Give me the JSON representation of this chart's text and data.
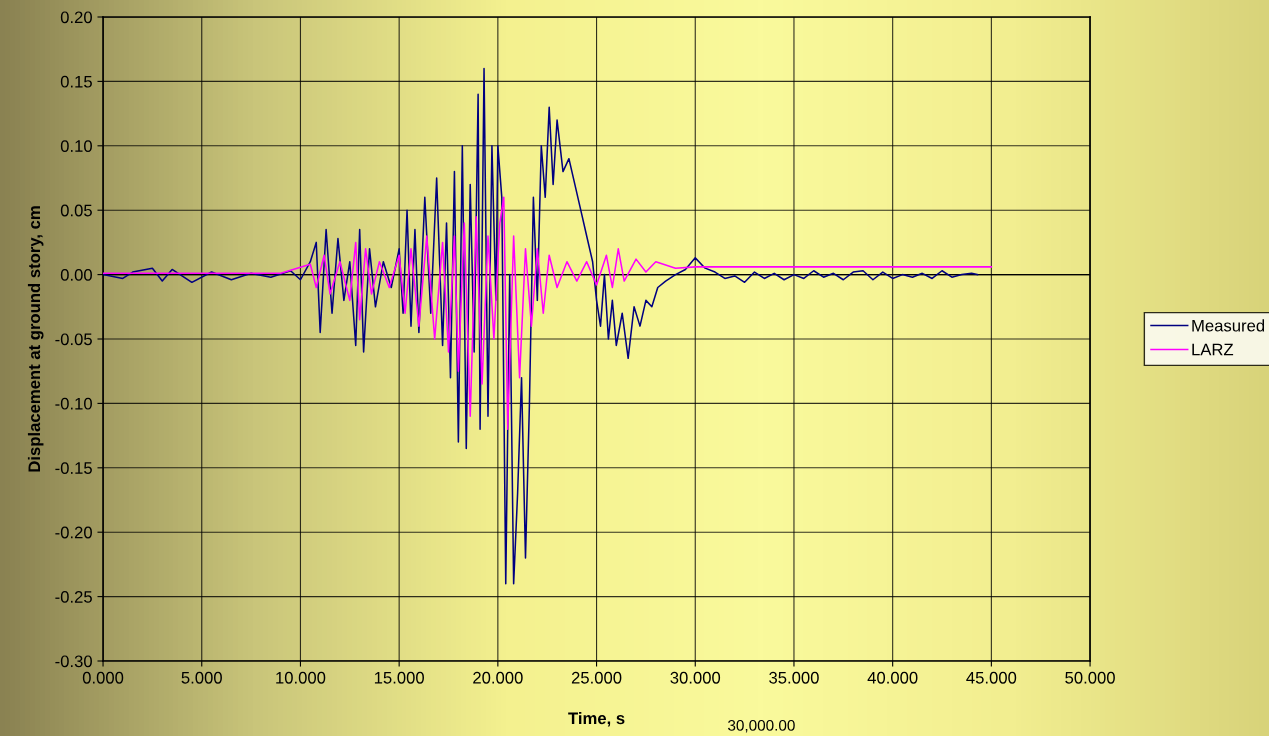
{
  "chart_data": {
    "type": "line",
    "xlabel": "Time, s",
    "ylabel": "Displacement at ground story, cm",
    "xlim": [
      0,
      50
    ],
    "ylim": [
      -0.3,
      0.2
    ],
    "xticks": [
      {
        "value": 0,
        "label": "0.000"
      },
      {
        "value": 5,
        "label": "5.000"
      },
      {
        "value": 10,
        "label": "10.000"
      },
      {
        "value": 15,
        "label": "15.000"
      },
      {
        "value": 20,
        "label": "20.000"
      },
      {
        "value": 25,
        "label": "25.000"
      },
      {
        "value": 30,
        "label": "30.000"
      },
      {
        "value": 35,
        "label": "35.000"
      },
      {
        "value": 40,
        "label": "40.000"
      },
      {
        "value": 45,
        "label": "45.000"
      },
      {
        "value": 50,
        "label": "50.000"
      }
    ],
    "yticks": [
      {
        "value": -0.3,
        "label": "-0.30"
      },
      {
        "value": -0.25,
        "label": "-0.25"
      },
      {
        "value": -0.2,
        "label": "-0.20"
      },
      {
        "value": -0.15,
        "label": "-0.15"
      },
      {
        "value": -0.1,
        "label": "-0.10"
      },
      {
        "value": -0.05,
        "label": "-0.05"
      },
      {
        "value": 0,
        "label": "0.00"
      },
      {
        "value": 0.05,
        "label": "0.05"
      },
      {
        "value": 0.1,
        "label": "0.10"
      },
      {
        "value": 0.15,
        "label": "0.15"
      },
      {
        "value": 0.2,
        "label": "0.20"
      }
    ],
    "grid": true,
    "legend": "right",
    "marker": "none",
    "line_style": "solid",
    "ref_lines": [
      {
        "axis": "y",
        "value": 0,
        "color": "#000000"
      }
    ],
    "annotations": [
      "30,000.00"
    ],
    "series": [
      {
        "name": "Measured",
        "color": "#000080",
        "x": [
          0,
          1,
          1.5,
          2.5,
          3,
          3.5,
          4.5,
          5.5,
          6.5,
          7.5,
          8.5,
          9.5,
          10,
          10.5,
          10.8,
          11.0,
          11.3,
          11.6,
          11.9,
          12.2,
          12.5,
          12.8,
          13.0,
          13.2,
          13.5,
          13.8,
          14.2,
          14.6,
          15.0,
          15.2,
          15.4,
          15.6,
          15.8,
          16.0,
          16.3,
          16.6,
          16.9,
          17.2,
          17.4,
          17.6,
          17.8,
          18.0,
          18.2,
          18.4,
          18.6,
          18.8,
          19.0,
          19.1,
          19.3,
          19.5,
          19.7,
          19.9,
          20.0,
          20.2,
          20.4,
          20.6,
          20.8,
          21.0,
          21.2,
          21.4,
          21.6,
          21.8,
          22.0,
          22.2,
          22.4,
          22.6,
          22.8,
          23.0,
          23.3,
          23.6,
          23.9,
          24.2,
          24.5,
          24.8,
          25.0,
          25.2,
          25.4,
          25.6,
          25.8,
          26.0,
          26.3,
          26.6,
          26.9,
          27.2,
          27.5,
          27.8,
          28.1,
          28.5,
          29.0,
          29.5,
          30.0,
          30.5,
          31.0,
          31.5,
          32.0,
          32.5,
          33.0,
          33.5,
          34.0,
          34.5,
          35.0,
          35.5,
          36.0,
          36.5,
          37.0,
          37.5,
          38.0,
          38.5,
          39.0,
          39.5,
          40.0,
          40.5,
          41.0,
          41.5,
          42.0,
          42.5,
          43.0,
          43.5,
          44.0,
          44.3
        ],
        "values": [
          0,
          -0.003,
          0.002,
          0.005,
          -0.005,
          0.004,
          -0.006,
          0.002,
          -0.004,
          0.001,
          -0.002,
          0.003,
          -0.004,
          0.01,
          0.025,
          -0.045,
          0.035,
          -0.03,
          0.028,
          -0.02,
          0.01,
          -0.055,
          0.035,
          -0.06,
          0.02,
          -0.025,
          0.01,
          -0.01,
          0.02,
          -0.03,
          0.05,
          -0.04,
          0.035,
          -0.045,
          0.06,
          -0.03,
          0.075,
          -0.055,
          0.04,
          -0.08,
          0.08,
          -0.13,
          0.1,
          -0.135,
          0.07,
          -0.06,
          0.14,
          -0.12,
          0.16,
          -0.11,
          0.1,
          -0.02,
          0.1,
          0.06,
          -0.24,
          0.0,
          -0.24,
          -0.17,
          -0.08,
          -0.22,
          -0.1,
          0.06,
          -0.02,
          0.1,
          0.06,
          0.13,
          0.07,
          0.12,
          0.08,
          0.09,
          0.07,
          0.05,
          0.03,
          0.01,
          -0.02,
          -0.04,
          0.0,
          -0.05,
          -0.02,
          -0.055,
          -0.03,
          -0.065,
          -0.025,
          -0.04,
          -0.02,
          -0.025,
          -0.01,
          -0.005,
          0.0,
          0.004,
          0.013,
          0.005,
          0.002,
          -0.003,
          -0.001,
          -0.006,
          0.002,
          -0.003,
          0.001,
          -0.004,
          0.0,
          -0.003,
          0.003,
          -0.002,
          0.001,
          -0.004,
          0.002,
          0.003,
          -0.004,
          0.002,
          -0.003,
          0.0,
          -0.002,
          0.001,
          -0.003,
          0.003,
          -0.002,
          0.0,
          0.001,
          0.0
        ]
      },
      {
        "name": "LARZ",
        "color": "#ff00ff",
        "x": [
          0,
          5,
          9,
          10.5,
          10.8,
          11.2,
          11.5,
          12,
          12.5,
          12.8,
          13,
          13.3,
          13.6,
          14,
          14.5,
          15.0,
          15.3,
          15.6,
          16.0,
          16.4,
          16.8,
          17.2,
          17.5,
          17.8,
          18.0,
          18.3,
          18.6,
          18.9,
          19.2,
          19.5,
          19.8,
          20.1,
          20.3,
          20.5,
          20.8,
          21.1,
          21.4,
          21.7,
          22.0,
          22.3,
          22.6,
          23.0,
          23.5,
          24,
          24.5,
          25,
          25.5,
          25.8,
          26.1,
          26.4,
          27,
          27.5,
          28,
          29,
          30,
          45
        ],
        "values": [
          0.001,
          0.001,
          0.001,
          0.008,
          -0.01,
          0.015,
          -0.015,
          0.01,
          -0.02,
          0.025,
          -0.035,
          0.02,
          -0.015,
          0.01,
          -0.01,
          0.015,
          -0.03,
          0.02,
          -0.04,
          0.03,
          -0.05,
          0.025,
          -0.06,
          0.03,
          -0.075,
          0.04,
          -0.11,
          0.045,
          -0.085,
          0.03,
          -0.05,
          0.04,
          0.06,
          -0.12,
          0.03,
          -0.08,
          0.02,
          -0.04,
          0.02,
          -0.03,
          0.015,
          -0.01,
          0.01,
          -0.005,
          0.01,
          -0.008,
          0.015,
          -0.01,
          0.02,
          -0.005,
          0.012,
          0.002,
          0.01,
          0.005,
          0.006,
          0.006
        ]
      }
    ]
  }
}
